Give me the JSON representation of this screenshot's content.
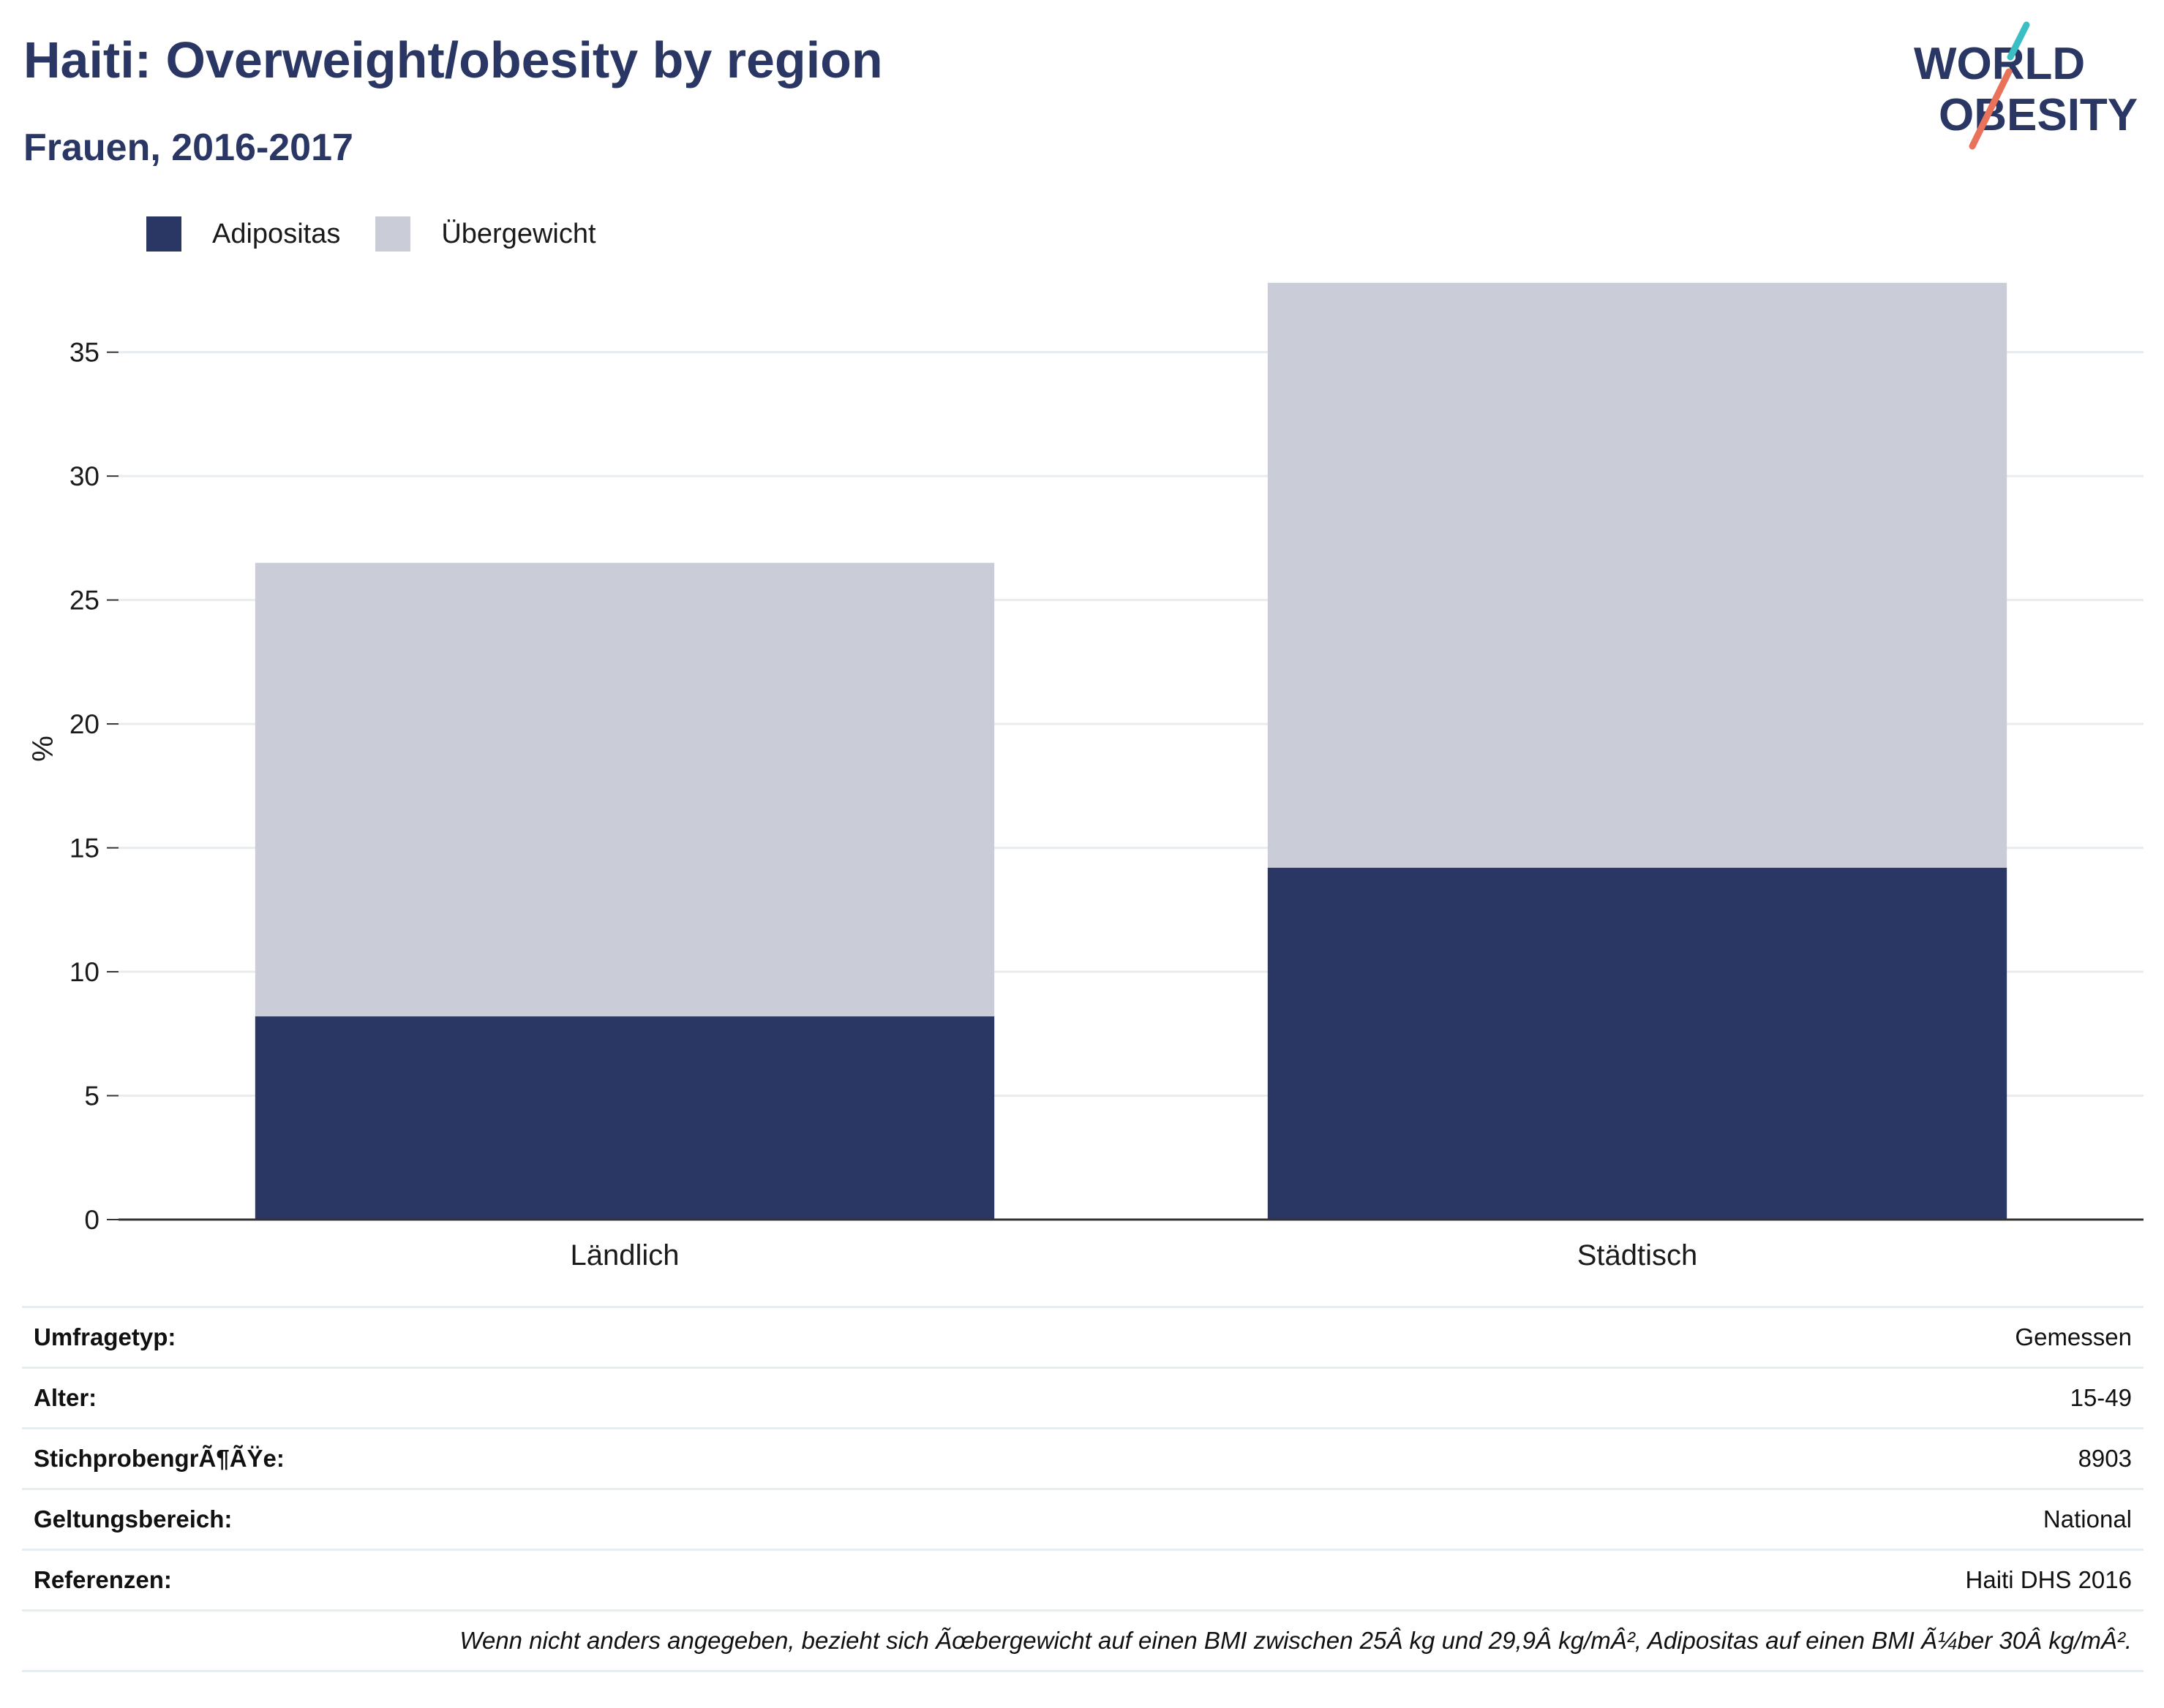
{
  "header": {
    "title": "Haiti: Overweight/obesity by region",
    "subtitle": "Frauen, 2016-2017"
  },
  "logo": {
    "line1": "WORLD",
    "line2": "OBESITY"
  },
  "colors": {
    "obesity": "#2a3663",
    "overweight": "#cacdd8",
    "logo_teal": "#3bbfc4",
    "logo_coral": "#e8735a"
  },
  "chart_data": {
    "type": "bar",
    "stacked": true,
    "categories": [
      "Ländlich",
      "Städtisch"
    ],
    "series": [
      {
        "name": "Adipositas",
        "values": [
          8.2,
          14.2
        ]
      },
      {
        "name": "Übergewicht",
        "values": [
          18.3,
          23.6
        ]
      }
    ],
    "ylabel": "%",
    "ylim": [
      0,
      38
    ],
    "yticks": [
      0,
      5,
      10,
      15,
      20,
      25,
      30,
      35
    ],
    "grid": true,
    "legend": "top-left"
  },
  "meta": {
    "rows": [
      {
        "label": "Umfragetyp:",
        "value": "Gemessen"
      },
      {
        "label": "Alter:",
        "value": "15-49"
      },
      {
        "label": "StichprobengrÃ¶ÃŸe:",
        "value": "8903"
      },
      {
        "label": "Geltungsbereich:",
        "value": "National"
      },
      {
        "label": "Referenzen:",
        "value": "Haiti DHS 2016"
      }
    ],
    "note": "Wenn nicht anders angegeben, bezieht sich Ãœbergewicht auf einen BMI zwischen 25Â kg und 29,9Â kg/mÂ², Adipositas auf einen BMI Ã¼ber 30Â kg/mÂ²."
  }
}
